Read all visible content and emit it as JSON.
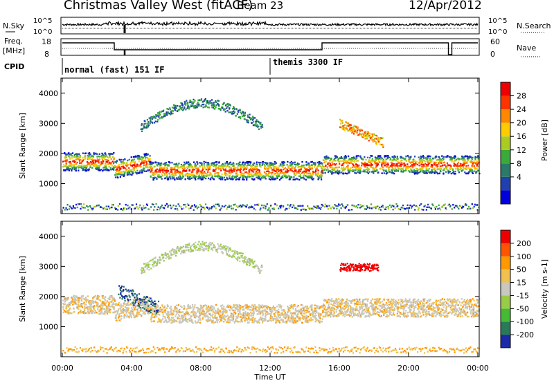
{
  "header": {
    "title": "Christmas Valley West (fitACF)",
    "beam": "Beam 23",
    "date": "12/Apr/2012"
  },
  "sky_panel": {
    "left_label": "N.Sky",
    "right_label": "N.Search",
    "left_ticks": [
      "10^5",
      "10^0"
    ],
    "right_ticks": [
      "10^5",
      "10^0"
    ]
  },
  "freq_panel": {
    "left_label_1": "Freq.",
    "left_label_2": "[MHz]",
    "right_label": "Nave",
    "left_ticks": [
      "18",
      "8"
    ],
    "right_ticks": [
      "60",
      "0"
    ]
  },
  "cpid": {
    "label": "CPID",
    "segments": [
      "normal (fast) 151 IF",
      "themis 3300 IF"
    ]
  },
  "chart_data": [
    {
      "type": "heatmap",
      "name": "power",
      "ylabel": "Slant Range [km]",
      "xlabel": "Time UT",
      "yticks": [
        1000,
        2000,
        3000,
        4000
      ],
      "ylim": [
        0,
        4500
      ],
      "xticks": [
        "00:00",
        "04:00",
        "08:00",
        "12:00",
        "16:00",
        "20:00",
        "00:00"
      ],
      "colorbar_label": "Power [dB]",
      "colorbar_ticks": [
        "28",
        "24",
        "20",
        "16",
        "12",
        "8",
        "4"
      ],
      "colorbar_colors": [
        "#0000dd",
        "#2040b0",
        "#2a7a6a",
        "#3aaa3a",
        "#aacc22",
        "#ffcc00",
        "#ff8800",
        "#ff3300",
        "#ee0000"
      ]
    },
    {
      "type": "heatmap",
      "name": "velocity",
      "ylabel": "Slant Range [km]",
      "xlabel": "Time UT",
      "yticks": [
        1000,
        2000,
        3000,
        4000
      ],
      "ylim": [
        0,
        4500
      ],
      "xticks": [
        "00:00",
        "04:00",
        "08:00",
        "12:00",
        "16:00",
        "20:00",
        "00:00"
      ],
      "colorbar_label": "Velocity [m s-1]",
      "colorbar_ticks": [
        "200",
        "100",
        "50",
        "15",
        "-15",
        "-50",
        "-100",
        "-200"
      ],
      "colorbar_colors": [
        "#1a2aa8",
        "#2a7a5a",
        "#44bb33",
        "#99cc44",
        "#c8c8c0",
        "#f0c050",
        "#ff9900",
        "#ff5500",
        "#ee0000"
      ]
    }
  ]
}
